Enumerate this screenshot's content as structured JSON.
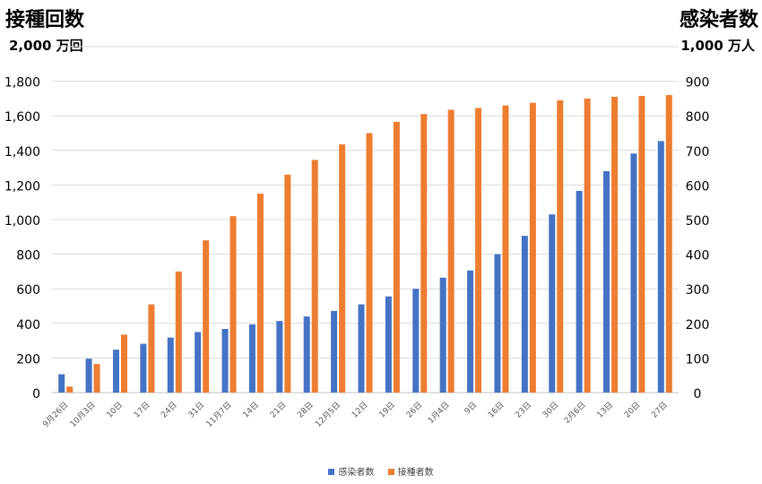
{
  "titles": {
    "left": "接種回数",
    "right": "感染者数",
    "left_unit": "2,000 万回",
    "right_unit": "1,000 万人"
  },
  "chart_data": {
    "type": "bar",
    "categories": [
      "9月26日",
      "10月3日",
      "10日",
      "17日",
      "24日",
      "31日",
      "11月7日",
      "14日",
      "21日",
      "28日",
      "12月5日",
      "12日",
      "19日",
      "26日",
      "1月4日",
      "9日",
      "16日",
      "23日",
      "30日",
      "2月6日",
      "13日",
      "20日",
      "27日"
    ],
    "series": [
      {
        "name": "感染者数",
        "axis": "right",
        "color": "#4472C4",
        "values": [
          53,
          98,
          124,
          141,
          159,
          175,
          184,
          197,
          207,
          220,
          236,
          255,
          278,
          300,
          332,
          353,
          400,
          453,
          515,
          583,
          640,
          691,
          727
        ]
      },
      {
        "name": "接種者数",
        "axis": "left",
        "color": "#ED7D31",
        "values": [
          35,
          165,
          335,
          510,
          700,
          880,
          1020,
          1150,
          1260,
          1345,
          1435,
          1500,
          1565,
          1610,
          1635,
          1645,
          1660,
          1675,
          1690,
          1700,
          1710,
          1715,
          1720
        ]
      }
    ],
    "left_axis": {
      "ylim": [
        0,
        2000
      ],
      "ticks": [
        "0",
        "200",
        "400",
        "600",
        "800",
        "1,000",
        "1,200",
        "1,400",
        "1,600",
        "1,800"
      ],
      "tick_values": [
        0,
        200,
        400,
        600,
        800,
        1000,
        1200,
        1400,
        1600,
        1800
      ]
    },
    "right_axis": {
      "ylim": [
        0,
        1000
      ],
      "ticks": [
        "0",
        "100",
        "200",
        "300",
        "400",
        "500",
        "600",
        "700",
        "800",
        "900"
      ],
      "tick_values": [
        0,
        100,
        200,
        300,
        400,
        500,
        600,
        700,
        800,
        900
      ]
    },
    "grid": true,
    "legend_position": "bottom"
  },
  "legend": {
    "items": [
      {
        "label": "感染者数",
        "color": "#4472C4"
      },
      {
        "label": "接種者数",
        "color": "#ED7D31"
      }
    ]
  }
}
